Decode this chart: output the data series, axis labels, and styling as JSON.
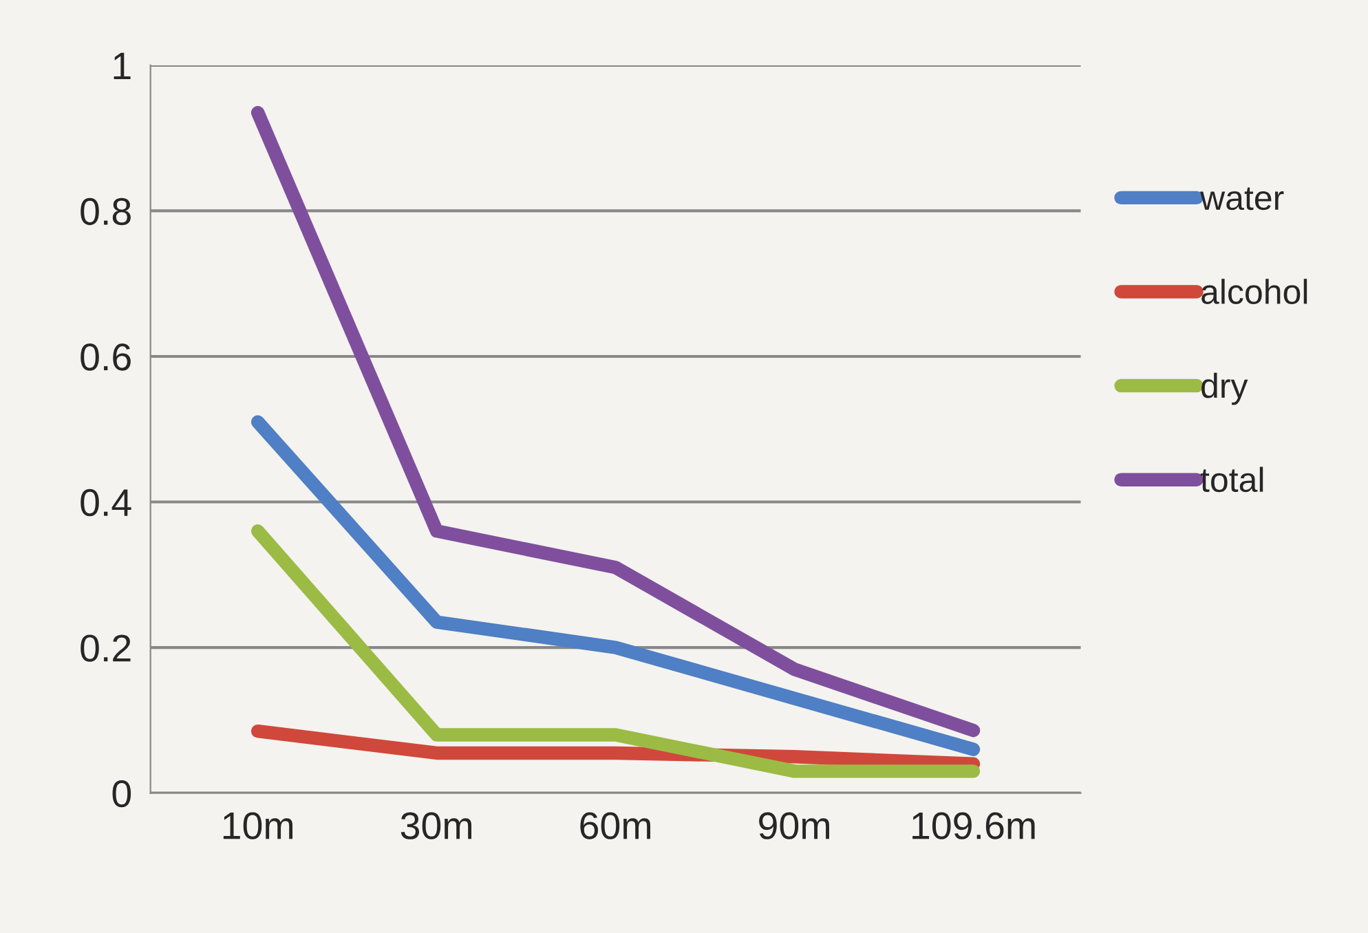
{
  "chart_data": {
    "type": "line",
    "categories": [
      "10m",
      "30m",
      "60m",
      "90m",
      "109.6m"
    ],
    "series": [
      {
        "name": "water",
        "color": "#4f7fc4",
        "values": [
          0.51,
          0.235,
          0.2,
          0.13,
          0.06
        ]
      },
      {
        "name": "alcohol",
        "color": "#d0483b",
        "values": [
          0.085,
          0.055,
          0.055,
          0.05,
          0.04
        ]
      },
      {
        "name": "dry",
        "color": "#9bbb45",
        "values": [
          0.36,
          0.08,
          0.08,
          0.03,
          0.03
        ]
      },
      {
        "name": "total",
        "color": "#7f4f9e",
        "values": [
          0.935,
          0.36,
          0.31,
          0.17,
          0.086
        ]
      }
    ],
    "ylim": [
      0,
      1
    ],
    "yticks": [
      0,
      0.2,
      0.4,
      0.6,
      0.8,
      1
    ],
    "grid": "y",
    "legend": "right",
    "marker": "none",
    "line_style": "solid"
  }
}
